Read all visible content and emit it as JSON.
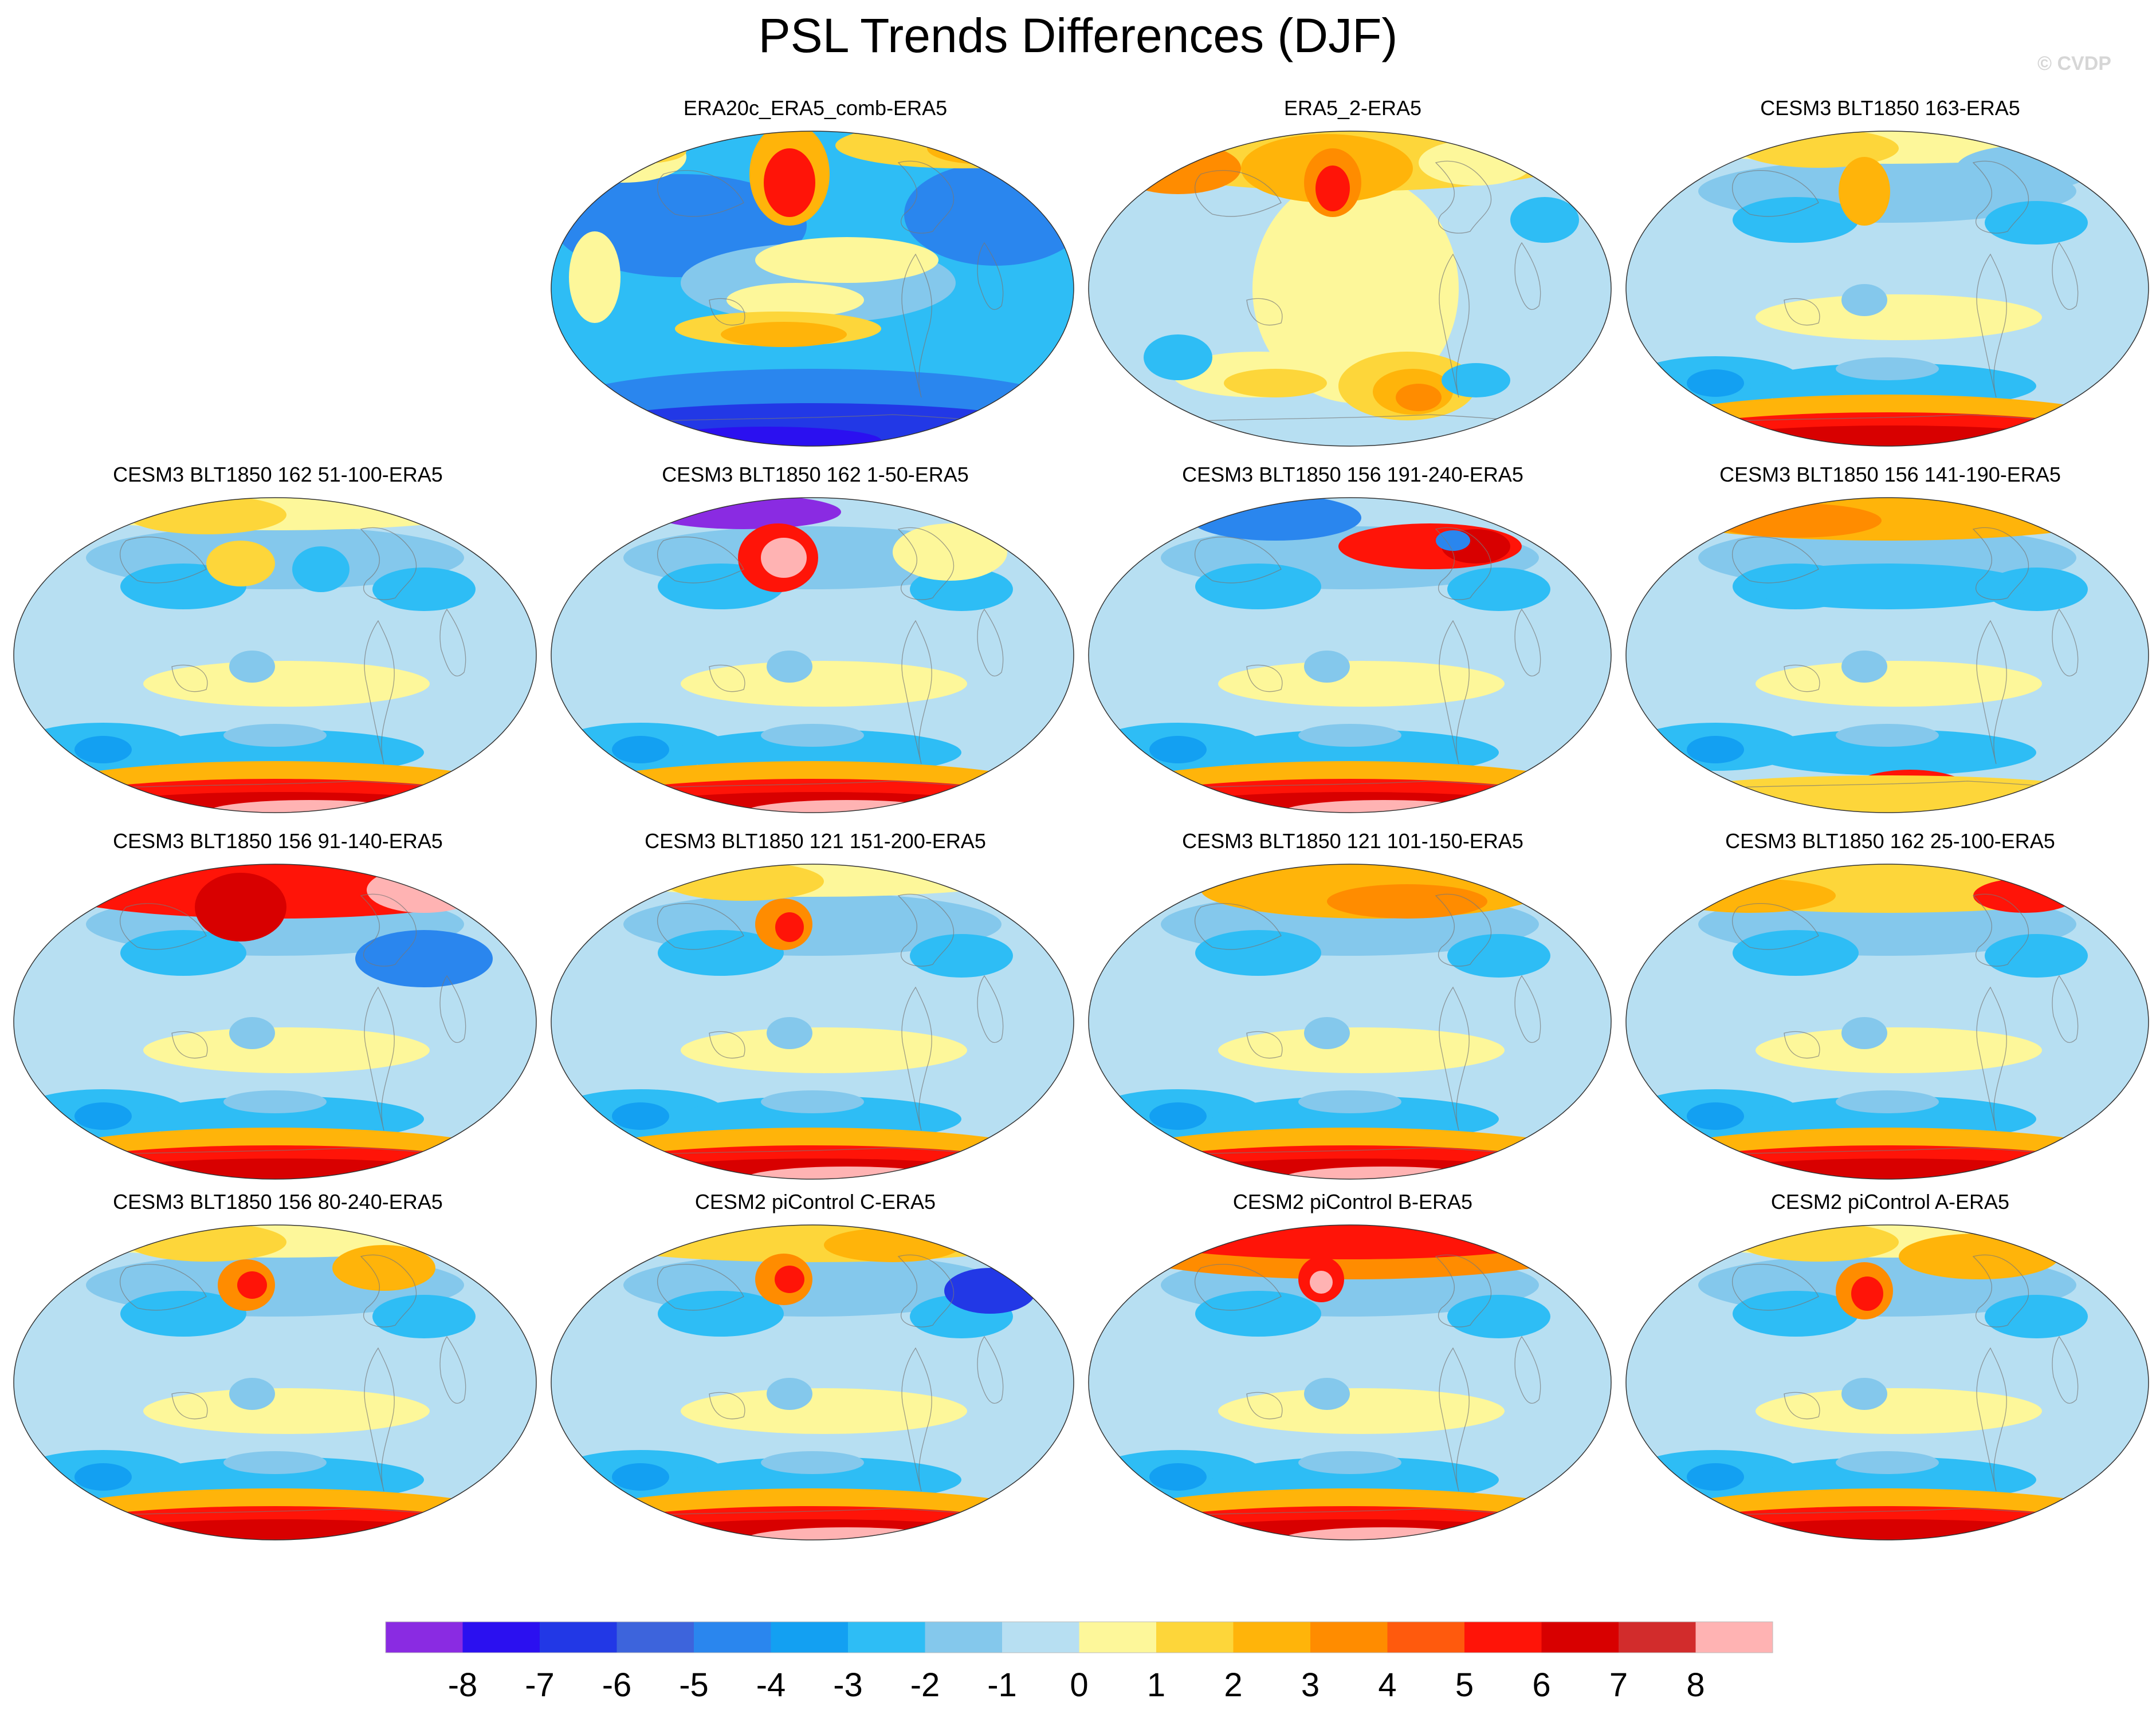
{
  "title": "PSL Trends Differences (DJF)",
  "watermark": "© CVDP",
  "panels": [
    {
      "title": "ERA20c_ERA5_comb-ERA5",
      "pattern": "era20c"
    },
    {
      "title": "ERA5_2-ERA5",
      "pattern": "era5"
    },
    {
      "title": "CESM3 BLT1850 163-ERA5",
      "pattern": "modelA"
    },
    {
      "title": "CESM3 BLT1850 162 51-100-ERA5",
      "pattern": "modelB"
    },
    {
      "title": "CESM3 BLT1850 162 1-50-ERA5",
      "pattern": "modelC"
    },
    {
      "title": "CESM3 BLT1850 156 191-240-ERA5",
      "pattern": "modelD"
    },
    {
      "title": "CESM3 BLT1850 156 141-190-ERA5",
      "pattern": "modelE"
    },
    {
      "title": "CESM3 BLT1850 156 91-140-ERA5",
      "pattern": "modelF"
    },
    {
      "title": "CESM3 BLT1850 121 151-200-ERA5",
      "pattern": "modelG"
    },
    {
      "title": "CESM3 BLT1850 121 101-150-ERA5",
      "pattern": "modelH"
    },
    {
      "title": "CESM3 BLT1850 162 25-100-ERA5",
      "pattern": "modelI"
    },
    {
      "title": "CESM3 BLT1850 156 80-240-ERA5",
      "pattern": "modelJ"
    },
    {
      "title": "CESM2 piControl C-ERA5",
      "pattern": "modelK"
    },
    {
      "title": "CESM2 piControl B-ERA5",
      "pattern": "modelL"
    },
    {
      "title": "CESM2 piControl A-ERA5",
      "pattern": "modelM"
    }
  ],
  "colorbar": {
    "labels": [
      "-8",
      "-7",
      "-6",
      "-5",
      "-4",
      "-3",
      "-2",
      "-1",
      "0",
      "1",
      "2",
      "3",
      "4",
      "5",
      "6",
      "7",
      "8"
    ],
    "colors": [
      "#8a2be2",
      "#2b10f0",
      "#2238e6",
      "#3d64dc",
      "#2a86ee",
      "#13a0f2",
      "#2ebdf5",
      "#84c8ec",
      "#b7dff2",
      "#fdf79a",
      "#fdd63a",
      "#ffb40a",
      "#ff8c00",
      "#ff5a0d",
      "#ff1408",
      "#d80000",
      "#d22c2c",
      "#ffb3b3"
    ]
  }
}
